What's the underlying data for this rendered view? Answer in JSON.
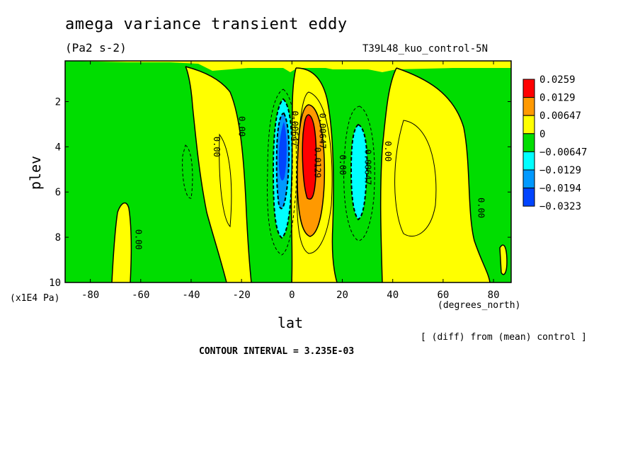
{
  "figure": {
    "title": "amega variance transient eddy",
    "units": "(Pa2 s-2)",
    "run_name": "T39L48_kuo_control-5N",
    "y_scale_note": "(x1E4 Pa)",
    "x_units": "(degrees_north)",
    "diff_note": "[ (diff) from (mean) control ]",
    "contour_interval": "CONTOUR INTERVAL = 3.235E-03"
  },
  "chart_data": {
    "type": "heatmap",
    "title": "amega variance transient eddy",
    "xlabel": "lat",
    "ylabel": "plev",
    "xlim": [
      -90,
      87
    ],
    "ylim": [
      10,
      0.2
    ],
    "x_ticks": [
      -80,
      -60,
      -40,
      -20,
      0,
      20,
      40,
      60,
      80
    ],
    "y_ticks": [
      2,
      4,
      6,
      8,
      10
    ],
    "colorbar_levels": [
      "0.0259",
      "0.0129",
      "0.00647",
      "0",
      "−0.00647",
      "−0.0129",
      "−0.0194",
      "−0.0323"
    ],
    "colors": [
      "#ff0000",
      "#ff9900",
      "#ffff00",
      "#00dd00",
      "#00ffff",
      "#0099ff",
      "#0044ff"
    ],
    "contour_labels": [
      {
        "text": "0.00",
        "lat": -31,
        "plev": 4.0
      },
      {
        "text": "0.00",
        "lat": -21,
        "plev": 3.1
      },
      {
        "text": "0.00",
        "lat": -62,
        "plev": 8.1
      },
      {
        "text": "0.00",
        "lat": 37,
        "plev": 4.2
      },
      {
        "text": "0.00",
        "lat": 19,
        "plev": 4.8
      },
      {
        "text": "0.00",
        "lat": 74,
        "plev": 6.7
      },
      {
        "text": "0.0129",
        "lat": 9,
        "plev": 4.7
      },
      {
        "text": "0.00647",
        "lat": 11,
        "plev": 3.3
      },
      {
        "text": "0.00647",
        "lat": 29,
        "plev": 4.9
      },
      {
        "text": "0.00647",
        "lat": 0,
        "plev": 3.2
      }
    ],
    "features": [
      {
        "sign": "negative",
        "lat_center": -2,
        "plev_center": 4.5,
        "min": -0.0323
      },
      {
        "sign": "positive",
        "lat_center": 8,
        "plev_center": 4.0,
        "max": 0.0259
      },
      {
        "sign": "negative",
        "lat_center": 29,
        "plev_center": 5.2,
        "min": -0.0129
      }
    ]
  }
}
